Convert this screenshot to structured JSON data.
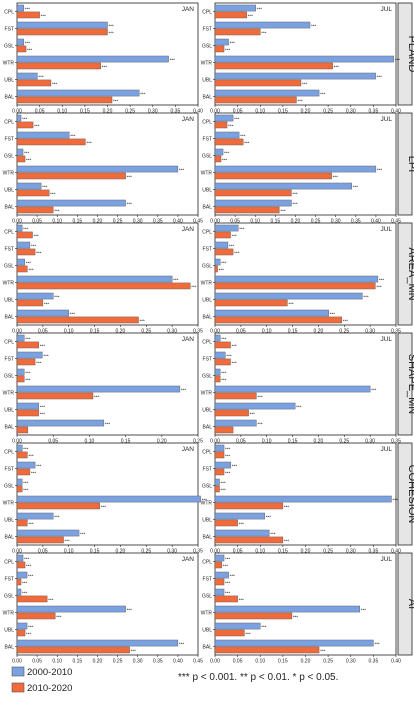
{
  "colors": {
    "series_a": "#7ba1e0",
    "series_b": "#f06a3c",
    "bar_stroke": "#555555",
    "frame": "#222222",
    "strip": "#e6e6e6",
    "tick_text": "#222222"
  },
  "legend": {
    "entries": [
      "2000-2010",
      "2010-2020"
    ],
    "note": "*** p < 0.001. ** p < 0.01. * p < 0.05."
  },
  "chart_data": [
    {
      "type": "bar",
      "title": "PLAND",
      "orientation": "horizontal",
      "panels": [
        {
          "label": "JAN",
          "xlim": [
            0,
            0.4
          ],
          "xticks": [
            "0.00",
            "0.05",
            "0.10",
            "0.15",
            "0.20",
            "0.25",
            "0.30",
            "0.35",
            "0.40"
          ],
          "categories": [
            "CPL",
            "FST",
            "GSL",
            "WTR",
            "UBL",
            "BAL"
          ],
          "series": [
            {
              "name": "2000-2010",
              "values": [
                0.015,
                0.2,
                0.015,
                0.335,
                0.045,
                0.27
              ],
              "sig": [
                "***",
                "***",
                "***",
                "***",
                "***",
                "***"
              ]
            },
            {
              "name": "2010-2020",
              "values": [
                0.05,
                0.2,
                0.02,
                0.185,
                0.075,
                0.21
              ],
              "sig": [
                "***",
                "***",
                "***",
                "***",
                "***",
                "***"
              ]
            }
          ]
        },
        {
          "label": "JUL",
          "xlim": [
            0,
            0.4
          ],
          "xticks": [
            "0.00",
            "0.05",
            "0.10",
            "0.15",
            "0.20",
            "0.25",
            "0.30",
            "0.35",
            "0.40"
          ],
          "categories": [
            "CPL",
            "FST",
            "GSL",
            "WTR",
            "UBL",
            "BAL"
          ],
          "series": [
            {
              "name": "2000-2010",
              "values": [
                0.09,
                0.21,
                0.03,
                0.395,
                0.355,
                0.23
              ],
              "sig": [
                "***",
                "***",
                "***",
                "***",
                "***",
                "***"
              ]
            },
            {
              "name": "2010-2020",
              "values": [
                0.07,
                0.1,
                0.02,
                0.26,
                0.19,
                0.18
              ],
              "sig": [
                "***",
                "***",
                "***",
                "***",
                "***",
                "***"
              ]
            }
          ]
        }
      ]
    },
    {
      "type": "bar",
      "title": "LPI",
      "orientation": "horizontal",
      "panels": [
        {
          "label": "JAN",
          "xlim": [
            0,
            0.45
          ],
          "xticks": [
            "0.00",
            "0.05",
            "0.10",
            "0.15",
            "0.20",
            "0.25",
            "0.30",
            "0.35",
            "0.40",
            "0.45"
          ],
          "categories": [
            "CPL",
            "FST",
            "GSL",
            "WTR",
            "UBL",
            "BAL"
          ],
          "series": [
            {
              "name": "2000-2010",
              "values": [
                0.01,
                0.13,
                0.015,
                0.4,
                0.06,
                0.27
              ],
              "sig": [
                "***",
                "***",
                "***",
                "***",
                "***",
                "***"
              ]
            },
            {
              "name": "2010-2020",
              "values": [
                0.04,
                0.17,
                0.02,
                0.27,
                0.08,
                0.09
              ],
              "sig": [
                "***",
                "***",
                "***",
                "***",
                "***",
                "***"
              ]
            }
          ]
        },
        {
          "label": "JUL",
          "xlim": [
            0,
            0.45
          ],
          "xticks": [
            "0.00",
            "0.05",
            "0.10",
            "0.15",
            "0.20",
            "0.25",
            "0.30",
            "0.35",
            "0.40",
            "0.45"
          ],
          "categories": [
            "CPL",
            "FST",
            "GSL",
            "WTR",
            "UBL",
            "BAL"
          ],
          "series": [
            {
              "name": "2000-2010",
              "values": [
                0.045,
                0.06,
                0.02,
                0.4,
                0.34,
                0.19
              ],
              "sig": [
                "***",
                "***",
                "***",
                "***",
                "***",
                "***"
              ]
            },
            {
              "name": "2010-2020",
              "values": [
                0.03,
                0.07,
                0.015,
                0.29,
                0.19,
                0.16
              ],
              "sig": [
                "***",
                "***",
                "***",
                "***",
                "***",
                "***"
              ]
            }
          ]
        }
      ]
    },
    {
      "type": "bar",
      "title": "AREA_MN",
      "orientation": "horizontal",
      "panels": [
        {
          "label": "JAN",
          "xlim": [
            0,
            0.35
          ],
          "xticks": [
            "0.00",
            "0.05",
            "0.10",
            "0.15",
            "0.20",
            "0.25",
            "0.30",
            "0.35"
          ],
          "categories": [
            "CPL",
            "FST",
            "GSL",
            "WTR",
            "UBL",
            "BAL"
          ],
          "series": [
            {
              "name": "2000-2010",
              "values": [
                0.01,
                0.025,
                0.015,
                0.3,
                0.07,
                0.1
              ],
              "sig": [
                "***",
                "***",
                "***",
                "***",
                "***",
                "***"
              ]
            },
            {
              "name": "2010-2020",
              "values": [
                0.03,
                0.035,
                0.02,
                0.335,
                0.05,
                0.235
              ],
              "sig": [
                "***",
                "***",
                "***",
                "***",
                "***",
                "***"
              ]
            }
          ]
        },
        {
          "label": "JUL",
          "xlim": [
            0,
            0.35
          ],
          "xticks": [
            "0.00",
            "0.05",
            "0.10",
            "0.15",
            "0.20",
            "0.25",
            "0.30",
            "0.35"
          ],
          "categories": [
            "CPL",
            "FST",
            "GSL",
            "WTR",
            "UBL",
            "BAL"
          ],
          "series": [
            {
              "name": "2000-2010",
              "values": [
                0.045,
                0.025,
                0.01,
                0.315,
                0.285,
                0.22
              ],
              "sig": [
                "***",
                "***",
                "***",
                "***",
                "***",
                "***"
              ]
            },
            {
              "name": "2010-2020",
              "values": [
                0.03,
                0.035,
                0.005,
                0.31,
                0.14,
                0.245
              ],
              "sig": [
                "***",
                "***",
                "***",
                "***",
                "***",
                "***"
              ]
            }
          ]
        }
      ]
    },
    {
      "type": "bar",
      "title": "SHAPE_MN",
      "orientation": "horizontal",
      "panels": [
        {
          "label": "JAN",
          "xlim": [
            0,
            0.25
          ],
          "xticks": [
            "0.00",
            "0.05",
            "0.10",
            "0.15",
            "0.20",
            "0.25"
          ],
          "categories": [
            "CPL",
            "FST",
            "GSL",
            "WTR",
            "UBL",
            "BAL"
          ],
          "series": [
            {
              "name": "2000-2010",
              "values": [
                0.01,
                0.035,
                0.01,
                0.225,
                0.03,
                0.12
              ],
              "sig": [
                "***",
                "***",
                "***",
                "***",
                "***",
                "***"
              ]
            },
            {
              "name": "2010-2020",
              "values": [
                0.03,
                0.025,
                0.01,
                0.105,
                0.03,
                0.015
              ],
              "sig": [
                "***",
                "***",
                "***",
                "***",
                "***",
                ""
              ]
            }
          ]
        },
        {
          "label": "JUL",
          "xlim": [
            0,
            0.35
          ],
          "xticks": [
            "0.00",
            "0.05",
            "0.10",
            "0.15",
            "0.20",
            "0.25",
            "0.30",
            "0.35"
          ],
          "categories": [
            "CPL",
            "FST",
            "GSL",
            "WTR",
            "UBL",
            "BAL"
          ],
          "series": [
            {
              "name": "2000-2010",
              "values": [
                0.01,
                0.02,
                0.01,
                0.3,
                0.155,
                0.08
              ],
              "sig": [
                "***",
                "***",
                "***",
                "***",
                "***",
                "***"
              ]
            },
            {
              "name": "2010-2020",
              "values": [
                0.03,
                0.03,
                0.01,
                0.08,
                0.065,
                0.035
              ],
              "sig": [
                "***",
                "***",
                "***",
                "***",
                "***",
                ""
              ]
            }
          ]
        }
      ]
    },
    {
      "type": "bar",
      "title": "COHESION",
      "orientation": "horizontal",
      "panels": [
        {
          "label": "JAN",
          "xlim": [
            0,
            0.35
          ],
          "xticks": [
            "0.00",
            "0.05",
            "0.10",
            "0.15",
            "0.20",
            "0.25",
            "0.30",
            "0.35"
          ],
          "categories": [
            "CPL",
            "FST",
            "GSL",
            "WTR",
            "UBL",
            "BAL"
          ],
          "series": [
            {
              "name": "2000-2010",
              "values": [
                0.01,
                0.035,
                0.01,
                0.355,
                0.07,
                0.12
              ],
              "sig": [
                "***",
                "***",
                "***",
                "***",
                "***",
                "***"
              ]
            },
            {
              "name": "2010-2020",
              "values": [
                0.02,
                0.025,
                0.01,
                0.16,
                0.02,
                0.09
              ],
              "sig": [
                "***",
                "***",
                "***",
                "***",
                "***",
                "***"
              ]
            }
          ]
        },
        {
          "label": "JUL",
          "xlim": [
            0,
            0.4
          ],
          "xticks": [
            "0.00",
            "0.05",
            "0.10",
            "0.15",
            "0.20",
            "0.25",
            "0.30",
            "0.35",
            "0.40"
          ],
          "categories": [
            "CPL",
            "FST",
            "GSL",
            "WTR",
            "UBL",
            "BAL"
          ],
          "series": [
            {
              "name": "2000-2010",
              "values": [
                0.02,
                0.035,
                0.01,
                0.39,
                0.11,
                0.12
              ],
              "sig": [
                "***",
                "***",
                "***",
                "***",
                "***",
                "***"
              ]
            },
            {
              "name": "2010-2020",
              "values": [
                0.02,
                0.02,
                0.01,
                0.15,
                0.05,
                0.15
              ],
              "sig": [
                "***",
                "***",
                "***",
                "***",
                "***",
                "***"
              ]
            }
          ]
        }
      ]
    },
    {
      "type": "bar",
      "title": "AI",
      "orientation": "horizontal",
      "panels": [
        {
          "label": "JAN",
          "xlim": [
            0,
            0.45
          ],
          "xticks": [
            "0.00",
            "0.05",
            "0.10",
            "0.15",
            "0.20",
            "0.25",
            "0.30",
            "0.35",
            "0.40",
            "0.45"
          ],
          "categories": [
            "CPL",
            "FST",
            "GSL",
            "WTR",
            "UBL",
            "BAL"
          ],
          "series": [
            {
              "name": "2000-2010",
              "values": [
                0.015,
                0.025,
                0.01,
                0.27,
                0.025,
                0.4
              ],
              "sig": [
                "***",
                "***",
                "***",
                "***",
                "***",
                "***"
              ]
            },
            {
              "name": "2010-2020",
              "values": [
                0.02,
                0.01,
                0.075,
                0.095,
                0.02,
                0.28
              ],
              "sig": [
                "***",
                "***",
                "***",
                "***",
                "***",
                "***"
              ]
            }
          ]
        },
        {
          "label": "JUL",
          "xlim": [
            0,
            0.4
          ],
          "xticks": [
            "0.00",
            "0.05",
            "0.10",
            "0.15",
            "0.20",
            "0.25",
            "0.30",
            "0.35",
            "0.40"
          ],
          "categories": [
            "CPL",
            "FST",
            "GSL",
            "WTR",
            "UBL",
            "BAL"
          ],
          "series": [
            {
              "name": "2000-2010",
              "values": [
                0.02,
                0.03,
                0.02,
                0.32,
                0.1,
                0.35
              ],
              "sig": [
                "***",
                "***",
                "***",
                "***",
                "***",
                "***"
              ]
            },
            {
              "name": "2010-2020",
              "values": [
                0.015,
                0.02,
                0.05,
                0.17,
                0.065,
                0.23
              ],
              "sig": [
                "***",
                "***",
                "***",
                "***",
                "***",
                "***"
              ]
            }
          ]
        }
      ]
    }
  ]
}
